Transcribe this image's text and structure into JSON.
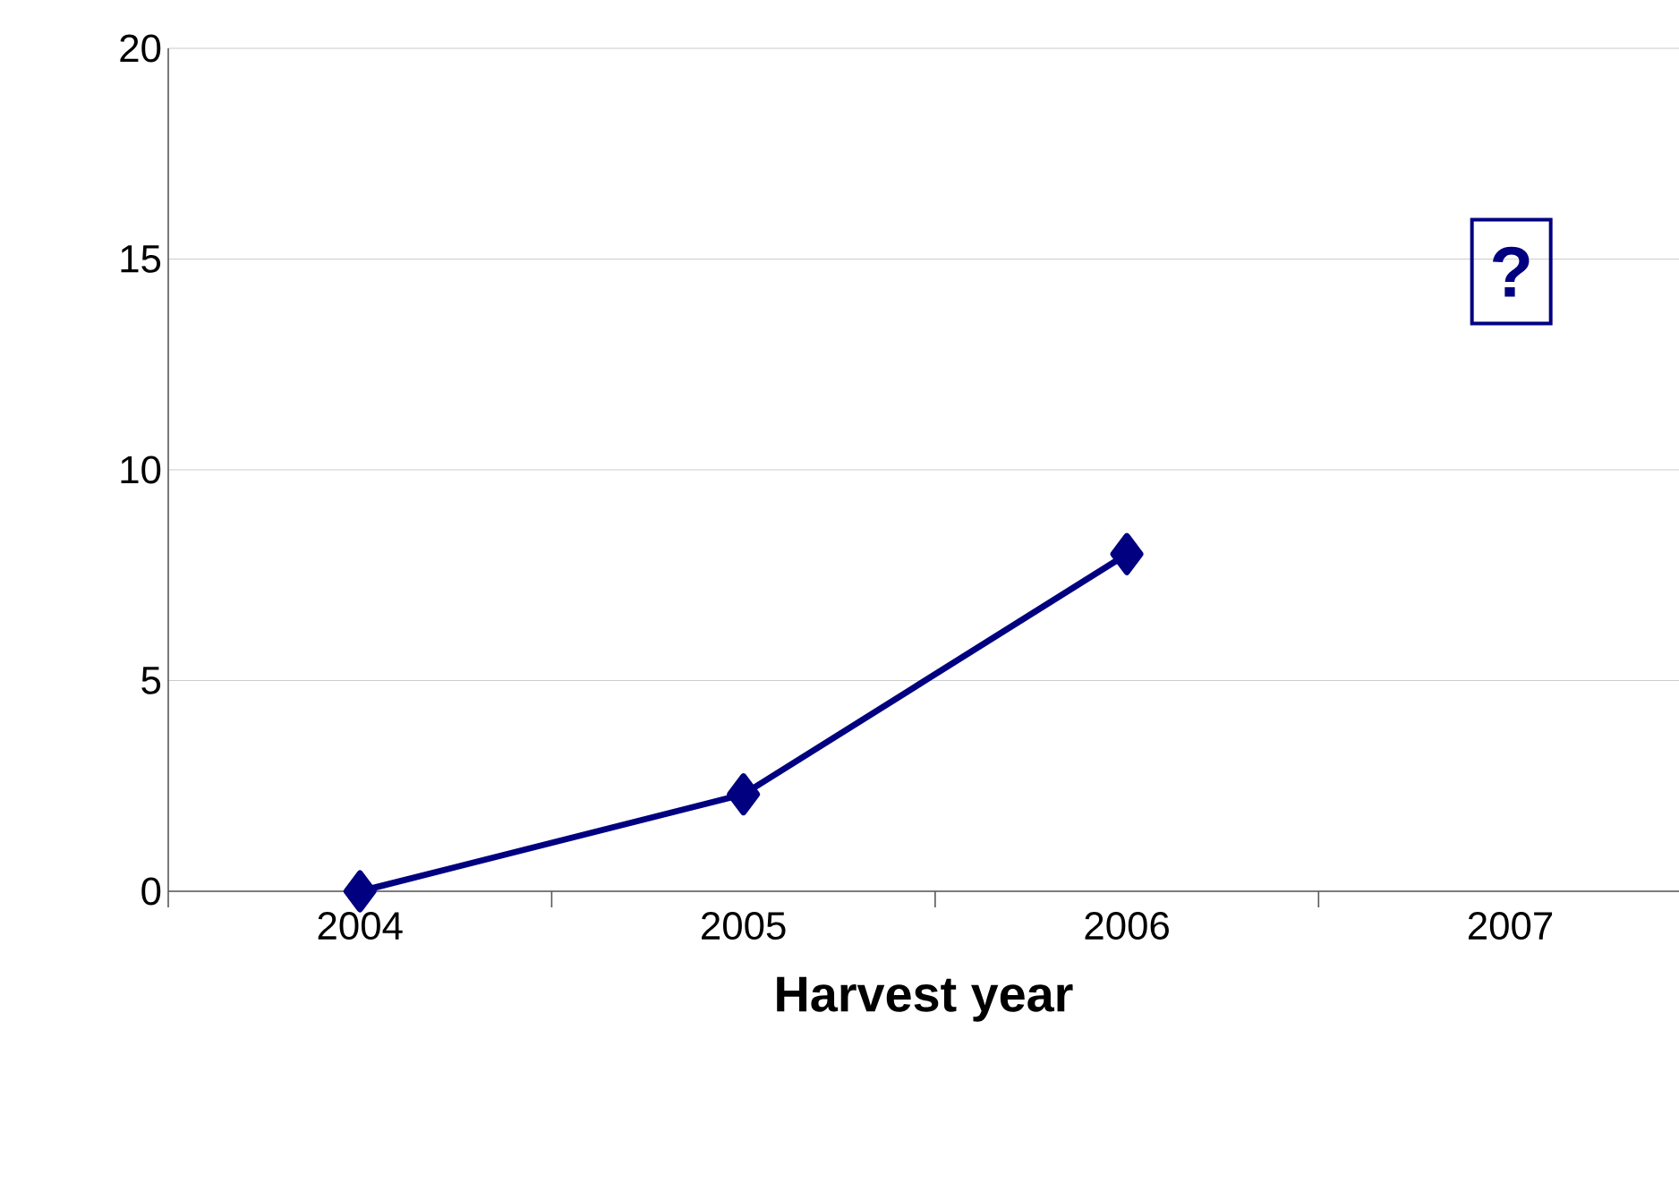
{
  "chart_data": {
    "type": "line",
    "xlabel": "Harvest year",
    "categories": [
      "2004",
      "2005",
      "2006",
      "2007"
    ],
    "series": [
      {
        "color": "#000080",
        "values": [
          0,
          2.3,
          8.0,
          null
        ]
      }
    ],
    "ylim": [
      0,
      20
    ],
    "yticks": [
      0,
      5,
      10,
      15,
      20
    ],
    "grid": "y",
    "marker": "diamond",
    "line_style": "solid",
    "annotations": [
      "?"
    ]
  }
}
